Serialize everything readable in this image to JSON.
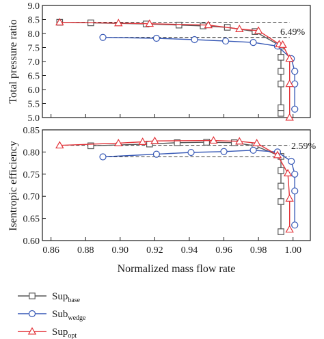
{
  "chart_data": [
    {
      "type": "line",
      "ylabel": "Total pressure ratio",
      "ylim": [
        5.0,
        9.0
      ],
      "yticks": [
        "9.0",
        "8.5",
        "8.0",
        "7.5",
        "7.0",
        "6.5",
        "6.0",
        "5.5",
        "5.0"
      ],
      "xlim": [
        0.855,
        1.01
      ],
      "grid": false,
      "annotation": "6.49%",
      "series": [
        {
          "name": "Sup base",
          "color": "#555555",
          "marker": "square",
          "x": [
            0.865,
            0.883,
            0.915,
            0.934,
            0.948,
            0.962,
            0.978,
            0.993,
            0.993,
            0.993,
            0.993,
            0.993,
            0.993
          ],
          "y": [
            8.4,
            8.38,
            8.34,
            8.3,
            8.27,
            8.22,
            8.07,
            7.55,
            7.15,
            6.65,
            6.2,
            5.35,
            5.15
          ]
        },
        {
          "name": "Sub wedge",
          "color": "#3557b5",
          "marker": "circle",
          "x": [
            0.89,
            0.921,
            0.943,
            0.961,
            0.977,
            0.991,
            0.999,
            1.001,
            1.001,
            1.001
          ],
          "y": [
            7.86,
            7.83,
            7.78,
            7.73,
            7.68,
            7.55,
            7.1,
            6.65,
            6.2,
            5.3
          ]
        },
        {
          "name": "Sup opt",
          "color": "#e3343a",
          "marker": "triangle",
          "x": [
            0.865,
            0.899,
            0.917,
            0.951,
            0.969,
            0.98,
            0.992,
            0.994,
            0.998,
            0.998,
            0.998
          ],
          "y": [
            8.4,
            8.37,
            8.35,
            8.3,
            8.16,
            8.1,
            7.62,
            7.6,
            7.1,
            6.2,
            5.0
          ]
        }
      ]
    },
    {
      "type": "line",
      "xlabel": "Normalized mass flow rate",
      "ylabel": "Isentropic efficiency",
      "ylim": [
        0.6,
        0.85
      ],
      "yticks": [
        "0.85",
        "0.80",
        "0.75",
        "0.70",
        "0.65",
        "0.60"
      ],
      "xlim": [
        0.855,
        1.01
      ],
      "xticks": [
        "0.86",
        "0.88",
        "0.90",
        "0.92",
        "0.94",
        "0.96",
        "0.98",
        "1.00"
      ],
      "grid": false,
      "annotation": "2.59%",
      "series": [
        {
          "name": "Sup base",
          "color": "#555555",
          "marker": "square",
          "x": [
            0.883,
            0.917,
            0.933,
            0.95,
            0.966,
            0.978,
            0.993,
            0.993,
            0.993,
            0.993,
            0.993
          ],
          "y": [
            0.814,
            0.818,
            0.821,
            0.822,
            0.821,
            0.814,
            0.79,
            0.758,
            0.723,
            0.688,
            0.62
          ]
        },
        {
          "name": "Sub wedge",
          "color": "#3557b5",
          "marker": "circle",
          "x": [
            0.89,
            0.921,
            0.941,
            0.96,
            0.977,
            0.991,
            0.999,
            1.001,
            1.001,
            1.001
          ],
          "y": [
            0.789,
            0.795,
            0.799,
            0.801,
            0.804,
            0.8,
            0.779,
            0.75,
            0.712,
            0.635
          ]
        },
        {
          "name": "Sup opt",
          "color": "#e3343a",
          "marker": "triangle",
          "x": [
            0.865,
            0.899,
            0.913,
            0.92,
            0.954,
            0.969,
            0.979,
            0.991,
            0.997,
            0.998,
            0.998
          ],
          "y": [
            0.815,
            0.82,
            0.823,
            0.825,
            0.826,
            0.824,
            0.82,
            0.793,
            0.752,
            0.695,
            0.625
          ]
        }
      ]
    }
  ],
  "legend": {
    "placement": "bottom-left",
    "entries": [
      {
        "main": "Sup",
        "sub": "base",
        "color": "#555555",
        "marker": "square"
      },
      {
        "main": "Sub",
        "sub": "wedge",
        "color": "#3557b5",
        "marker": "circle"
      },
      {
        "main": "Sup",
        "sub": "opt",
        "color": "#e3343a",
        "marker": "triangle"
      }
    ]
  }
}
